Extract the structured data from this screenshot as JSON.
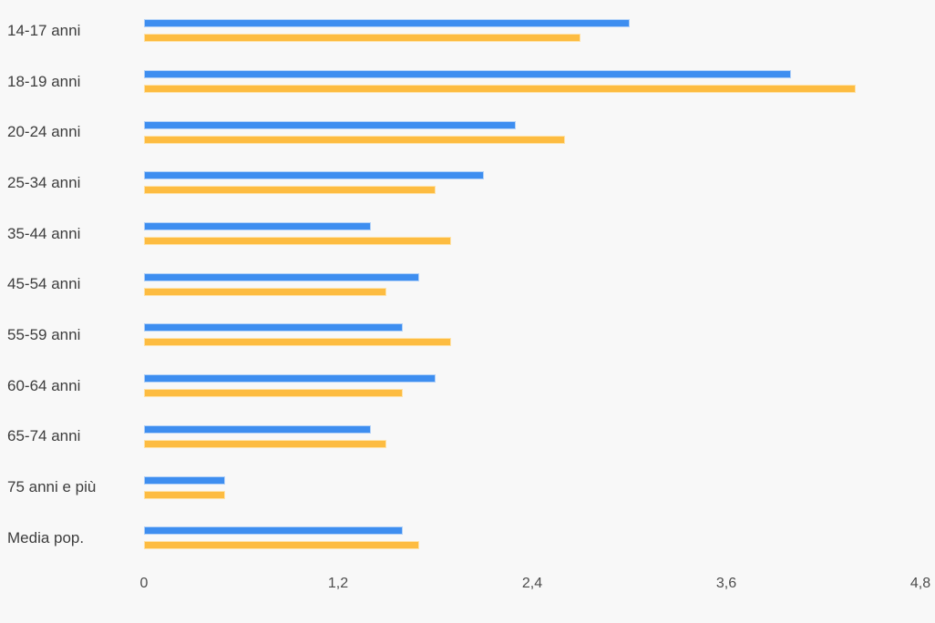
{
  "page": {
    "background_color": "#f8f8f8",
    "label_color": "#3d3d3d",
    "axis_label_color": "#4c4c4c"
  },
  "chart_data": {
    "type": "bar",
    "orientation": "horizontal",
    "categories": [
      "14-17 anni",
      "18-19 anni",
      "20-24 anni",
      "25-34 anni",
      "35-44 anni",
      "45-54 anni",
      "55-59 anni",
      "60-64 anni",
      "65-74 anni",
      "75 anni e più",
      "Media pop."
    ],
    "series": [
      {
        "name": "series-blue",
        "color": "#3e8ef0",
        "edge_color": "#b3d2f8",
        "values": [
          3.0,
          4.0,
          2.3,
          2.1,
          1.4,
          1.7,
          1.6,
          1.8,
          1.4,
          0.5,
          1.6
        ]
      },
      {
        "name": "series-orange",
        "color": "#fdbc41",
        "edge_color": "#fee3ab",
        "values": [
          2.7,
          4.4,
          2.6,
          1.8,
          1.9,
          1.5,
          1.9,
          1.6,
          1.5,
          0.5,
          1.7
        ]
      }
    ],
    "xlim": [
      0,
      4.8
    ],
    "x_ticks": [
      0,
      1.2,
      2.4,
      3.6,
      4.8
    ],
    "x_tick_labels": [
      "0",
      "1,2",
      "2,4",
      "3,6",
      "4,8"
    ],
    "grid": false,
    "legend": false,
    "title": "",
    "xlabel": "",
    "ylabel": ""
  }
}
